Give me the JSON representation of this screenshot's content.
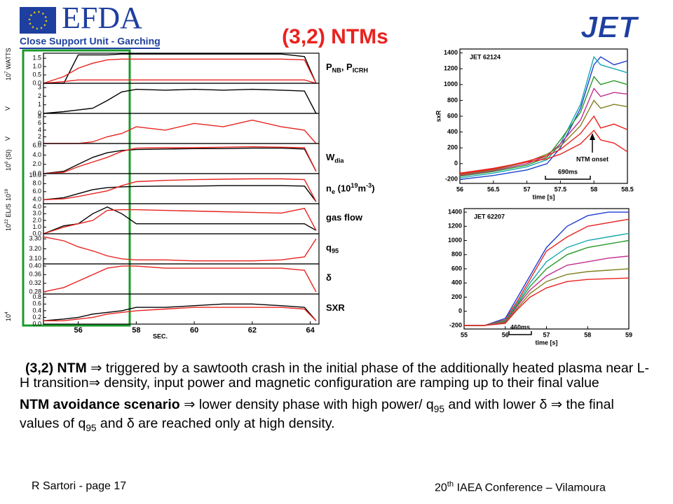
{
  "header": {
    "logo": "EFDA",
    "subtitle": "Close Support Unit - Garching",
    "title": "(3,2) NTMs",
    "jet": "JET"
  },
  "chart_data": [
    {
      "type": "line",
      "x": [
        54.8,
        55.5,
        56,
        56.5,
        57,
        57.5,
        58,
        59,
        60,
        61,
        62,
        63,
        63.8,
        64.2
      ],
      "xlim": [
        54.8,
        64.3
      ],
      "ylim": [
        0,
        1.8
      ],
      "yticks": [
        {
          "value": 0,
          "label": "0.0"
        },
        0.5,
        {
          "value": 1,
          "label": "1.0"
        },
        1.5
      ],
      "units": [
        {
          "text": "10"
        },
        {
          "text": "7",
          "sup": true
        },
        {
          "text": " WATTS"
        }
      ],
      "signal": [
        {
          "text": "P"
        },
        {
          "text": "NB",
          "sub": true
        },
        {
          "text": ", P"
        },
        {
          "text": "ICRH",
          "sub": true
        }
      ],
      "series": [
        {
          "color": "#000000",
          "values": [
            0,
            0,
            1.7,
            1.7,
            1.7,
            1.75,
            1.75,
            1.75,
            1.75,
            1.75,
            1.75,
            1.75,
            1.6,
            0
          ]
        },
        {
          "color": "#e8231f",
          "values": [
            0,
            0.4,
            0.9,
            1.2,
            1.4,
            1.45,
            1.45,
            1.45,
            1.45,
            1.45,
            1.45,
            1.45,
            1.4,
            0
          ]
        },
        {
          "color": "#e8231f",
          "values": [
            0,
            0.1,
            0.2,
            0.2,
            0.2,
            0.2,
            0.2,
            0.2,
            0.2,
            0.2,
            0.2,
            0.2,
            0.2,
            0
          ]
        }
      ]
    },
    {
      "type": "line",
      "x": [
        54.8,
        55.5,
        56,
        56.5,
        57,
        57.5,
        58,
        59,
        60,
        61,
        62,
        63,
        63.8,
        64.2
      ],
      "xlim": [
        54.8,
        64.3
      ],
      "ylim": [
        0,
        3.5
      ],
      "yticks": [
        0,
        1,
        2,
        3
      ],
      "units": [
        {
          "text": "V"
        }
      ],
      "series": [
        {
          "color": "#000000",
          "values": [
            0,
            0.2,
            0.4,
            0.6,
            1.5,
            2.5,
            2.8,
            2.7,
            2.8,
            2.7,
            2.8,
            2.7,
            2.6,
            0
          ]
        }
      ]
    },
    {
      "type": "line",
      "x": [
        54.8,
        55.5,
        56,
        56.5,
        57,
        57.5,
        58,
        59,
        60,
        61,
        62,
        63,
        63.8,
        64.2
      ],
      "xlim": [
        54.8,
        64.3
      ],
      "ylim": [
        0,
        9
      ],
      "yticks": [
        0,
        2,
        4,
        6,
        8
      ],
      "units": [
        {
          "text": "V"
        }
      ],
      "series": [
        {
          "color": "#e8231f",
          "values": [
            0,
            0,
            0,
            0.5,
            2,
            3,
            5,
            4,
            6,
            5,
            7,
            5,
            4,
            0
          ]
        }
      ]
    },
    {
      "type": "line",
      "x": [
        54.8,
        55.5,
        56,
        56.5,
        57,
        57.5,
        58,
        59,
        60,
        61,
        62,
        63,
        63.8,
        64.2
      ],
      "xlim": [
        54.8,
        64.3
      ],
      "ylim": [
        0,
        6.5
      ],
      "yticks": [
        {
          "value": 0,
          "label": "0.0"
        },
        {
          "value": 2,
          "label": "2.0"
        },
        {
          "value": 4,
          "label": "4.0"
        },
        {
          "value": 6,
          "label": "6.0"
        }
      ],
      "units": [
        {
          "text": "10"
        },
        {
          "text": "6",
          "sup": true
        },
        {
          "text": " (SI)"
        }
      ],
      "signal": [
        {
          "text": "W"
        },
        {
          "text": "dia",
          "sub": true
        }
      ],
      "series": [
        {
          "color": "#000000",
          "values": [
            0,
            0.5,
            2,
            3.5,
            4.5,
            5,
            5.2,
            5.3,
            5.4,
            5.4,
            5.5,
            5.5,
            5.3,
            0.5
          ]
        },
        {
          "color": "#e8231f",
          "values": [
            0,
            0.3,
            1.5,
            2.5,
            3.5,
            4.8,
            5.5,
            5.6,
            5.6,
            5.7,
            5.8,
            5.7,
            5.6,
            0.5
          ]
        }
      ]
    },
    {
      "type": "line",
      "x": [
        54.8,
        55.5,
        56,
        56.5,
        57,
        57.5,
        58,
        59,
        60,
        61,
        62,
        63,
        63.8,
        64.2
      ],
      "xlim": [
        54.8,
        64.3
      ],
      "ylim": [
        3,
        10.5
      ],
      "yticks": [
        {
          "value": 4,
          "label": "4.0"
        },
        {
          "value": 6,
          "label": "6.0"
        },
        {
          "value": 8,
          "label": "8.0"
        },
        {
          "value": 10,
          "label": "10.0"
        }
      ],
      "units": [
        {
          "text": "10"
        },
        {
          "text": "19",
          "sup": true
        }
      ],
      "signal": [
        {
          "text": "n"
        },
        {
          "text": "e",
          "sub": true
        },
        {
          "text": " (10"
        },
        {
          "text": "19",
          "sup": true
        },
        {
          "text": "m"
        },
        {
          "text": "-3",
          "sup": true
        },
        {
          "text": ")"
        }
      ],
      "series": [
        {
          "color": "#000000",
          "values": [
            4,
            4.5,
            5.5,
            6.5,
            7,
            7.2,
            7.3,
            7.4,
            7.4,
            7.5,
            7.5,
            7.5,
            7.4,
            3.5
          ]
        },
        {
          "color": "#e8231f",
          "values": [
            4,
            4.2,
            4.8,
            5.5,
            6.2,
            7.5,
            8.5,
            8.8,
            9,
            9.1,
            9.2,
            9.2,
            9,
            3.5
          ]
        }
      ]
    },
    {
      "type": "line",
      "x": [
        54.8,
        55.5,
        56,
        56.5,
        57,
        57.5,
        58,
        59,
        60,
        61,
        62,
        63,
        63.8,
        64.2
      ],
      "xlim": [
        54.8,
        64.3
      ],
      "ylim": [
        0,
        4.5
      ],
      "yticks": [
        {
          "value": 0,
          "label": "0.0"
        },
        {
          "value": 1,
          "label": "1.0"
        },
        {
          "value": 2,
          "label": "2.0"
        },
        {
          "value": 3,
          "label": "3.0"
        },
        {
          "value": 4,
          "label": "4.0"
        }
      ],
      "units": [
        {
          "text": "10"
        },
        {
          "text": "22",
          "sup": true
        },
        {
          "text": " EL/S"
        }
      ],
      "signal": [
        {
          "text": "gas flow"
        }
      ],
      "series": [
        {
          "color": "#000000",
          "values": [
            0,
            1.2,
            1.5,
            3,
            4,
            3,
            1.5,
            1.5,
            1.5,
            1.5,
            1.5,
            1.5,
            1.5,
            0.5
          ]
        },
        {
          "color": "#e8231f",
          "values": [
            0,
            1,
            1.5,
            2,
            3.5,
            3.6,
            3.6,
            3.5,
            3.4,
            3.3,
            3.2,
            3.1,
            3.8,
            0.5
          ]
        }
      ]
    },
    {
      "type": "line",
      "x": [
        54.8,
        55.5,
        56,
        56.5,
        57,
        57.5,
        58,
        59,
        60,
        61,
        62,
        63,
        63.8,
        64.2
      ],
      "xlim": [
        54.8,
        64.3
      ],
      "ylim": [
        3.05,
        3.35
      ],
      "yticks": [
        {
          "value": 3.1,
          "label": "3.10"
        },
        {
          "value": 3.2,
          "label": "3.20"
        },
        {
          "value": 3.3,
          "label": "3.30"
        }
      ],
      "signal": [
        {
          "text": "q"
        },
        {
          "text": "95",
          "sub": true
        }
      ],
      "series": [
        {
          "color": "#e8231f",
          "values": [
            3.32,
            3.28,
            3.22,
            3.18,
            3.13,
            3.1,
            3.09,
            3.09,
            3.08,
            3.08,
            3.08,
            3.09,
            3.12,
            3.3
          ]
        }
      ]
    },
    {
      "type": "line",
      "x": [
        54.8,
        55.5,
        56,
        56.5,
        57,
        57.5,
        58,
        59,
        60,
        61,
        62,
        63,
        63.8,
        64.2
      ],
      "xlim": [
        54.8,
        64.3
      ],
      "ylim": [
        0.27,
        0.41
      ],
      "yticks": [
        {
          "value": 0.28,
          "label": "0.28"
        },
        {
          "value": 0.32,
          "label": "0.32"
        },
        {
          "value": 0.36,
          "label": "0.36"
        },
        {
          "value": 0.4,
          "label": "0.40"
        }
      ],
      "signal": [
        {
          "text": "δ"
        }
      ],
      "series": [
        {
          "color": "#e8231f",
          "values": [
            0.28,
            0.3,
            0.33,
            0.36,
            0.39,
            0.4,
            0.4,
            0.39,
            0.39,
            0.39,
            0.39,
            0.39,
            0.38,
            0.28
          ]
        }
      ]
    },
    {
      "type": "line",
      "x": [
        54.8,
        55.5,
        56,
        56.5,
        57,
        57.5,
        58,
        59,
        60,
        61,
        62,
        63,
        63.8,
        64.2
      ],
      "xlim": [
        54.8,
        64.3
      ],
      "ylim": [
        0,
        0.9
      ],
      "yticks": [
        {
          "value": 0,
          "label": "0.0"
        },
        0.2,
        0.4,
        0.6,
        0.8
      ],
      "xticks": [
        56,
        58,
        60,
        62,
        64
      ],
      "xlabel": "SEC.",
      "units": [
        {
          "text": "10"
        },
        {
          "text": "4",
          "sup": true
        }
      ],
      "signal": [
        {
          "text": "SXR"
        }
      ],
      "series": [
        {
          "color": "#000000",
          "values": [
            0.1,
            0.15,
            0.2,
            0.3,
            0.35,
            0.4,
            0.5,
            0.5,
            0.55,
            0.6,
            0.6,
            0.55,
            0.5,
            0.1
          ]
        },
        {
          "color": "#e8231f",
          "values": [
            0.1,
            0.1,
            0.15,
            0.2,
            0.3,
            0.35,
            0.4,
            0.45,
            0.5,
            0.5,
            0.5,
            0.5,
            0.45,
            0.1
          ]
        }
      ]
    },
    {
      "type": "line",
      "title": "JET 62124",
      "xlabel": "time [s]",
      "ylabel": "sxR",
      "annotations": [
        "NTM onset",
        "690ms"
      ],
      "x": [
        56,
        56.5,
        57,
        57.3,
        57.5,
        57.8,
        58,
        58.1,
        58.3,
        58.5
      ],
      "xlim": [
        56,
        58.5
      ],
      "xticks": [
        56,
        56.5,
        57,
        57.5,
        58,
        58.5
      ],
      "ylim": [
        -250,
        1450
      ],
      "yticks": [
        -200,
        0,
        200,
        400,
        600,
        800,
        1000,
        1200,
        1400
      ],
      "series": [
        {
          "color": "#1f3fd0",
          "values": [
            -200,
            -150,
            -80,
            0,
            200,
            700,
            1250,
            1350,
            1250,
            1300
          ]
        },
        {
          "color": "#18a8b0",
          "values": [
            -180,
            -120,
            -40,
            50,
            250,
            750,
            1350,
            1250,
            1200,
            1150
          ]
        },
        {
          "color": "#2a9a2a",
          "values": [
            -160,
            -100,
            -20,
            80,
            300,
            650,
            1100,
            1000,
            1050,
            1000
          ]
        },
        {
          "color": "#c03090",
          "values": [
            -150,
            -90,
            0,
            100,
            250,
            550,
            950,
            850,
            900,
            880
          ]
        },
        {
          "color": "#808020",
          "values": [
            -140,
            -80,
            20,
            120,
            220,
            480,
            800,
            700,
            750,
            720
          ]
        },
        {
          "color": "#e8231f",
          "values": [
            -130,
            -70,
            30,
            100,
            180,
            380,
            600,
            450,
            500,
            430
          ]
        },
        {
          "color": "#e8231f",
          "values": [
            -120,
            -60,
            20,
            60,
            120,
            250,
            420,
            300,
            260,
            150
          ]
        }
      ]
    },
    {
      "type": "line",
      "title": "JET 62207",
      "xlabel": "time [s]",
      "annotations": [
        "460ms"
      ],
      "x": [
        55,
        55.5,
        56,
        56.3,
        56.6,
        57,
        57.5,
        58,
        58.5,
        59
      ],
      "xlim": [
        55,
        59
      ],
      "xticks": [
        55,
        56,
        57,
        58,
        59
      ],
      "ylim": [
        -250,
        1450
      ],
      "yticks": [
        -200,
        0,
        200,
        400,
        600,
        800,
        1000,
        1200,
        1400
      ],
      "series": [
        {
          "color": "#1f3fd0",
          "values": [
            -200,
            -200,
            -100,
            200,
            500,
            900,
            1200,
            1350,
            1400,
            1400
          ]
        },
        {
          "color": "#e8231f",
          "values": [
            -200,
            -200,
            -120,
            150,
            450,
            850,
            1050,
            1200,
            1250,
            1300
          ]
        },
        {
          "color": "#18a8b0",
          "values": [
            -200,
            -200,
            -130,
            120,
            400,
            700,
            900,
            1000,
            1050,
            1100
          ]
        },
        {
          "color": "#2a9a2a",
          "values": [
            -200,
            -200,
            -140,
            100,
            350,
            600,
            800,
            900,
            950,
            1000
          ]
        },
        {
          "color": "#c03090",
          "values": [
            -200,
            -200,
            -150,
            80,
            300,
            500,
            650,
            700,
            750,
            780
          ]
        },
        {
          "color": "#808020",
          "values": [
            -200,
            -200,
            -160,
            50,
            250,
            420,
            520,
            560,
            580,
            600
          ]
        },
        {
          "color": "#e8231f",
          "values": [
            -200,
            -200,
            -170,
            30,
            200,
            330,
            420,
            450,
            460,
            470
          ]
        }
      ]
    }
  ],
  "body": [
    [
      {
        "text": "(3,2) NTM ",
        "style": "b"
      },
      {
        "text": "⇒ triggered by a sawtooth crash in the initial phase of the additionally heated plasma near L-H transition⇒ density, input power and magnetic configuration are ramping up to their final value"
      }
    ],
    [
      {
        "text": "NTM avoidance scenario ",
        "style": "b"
      },
      {
        "text": "⇒ lower density phase with high power/ q"
      },
      {
        "text": "95",
        "style": "sub"
      },
      {
        "text": " and with lower δ ⇒ the final values of q"
      },
      {
        "text": "95",
        "style": "sub"
      },
      {
        "text": " and δ are reached only at high density."
      }
    ]
  ],
  "footer": {
    "left": "R Sartori  - page 17",
    "right": [
      {
        "text": "20"
      },
      {
        "text": "th",
        "style": "sup"
      },
      {
        "text": " IAEA Conference – Vilamoura"
      }
    ]
  }
}
